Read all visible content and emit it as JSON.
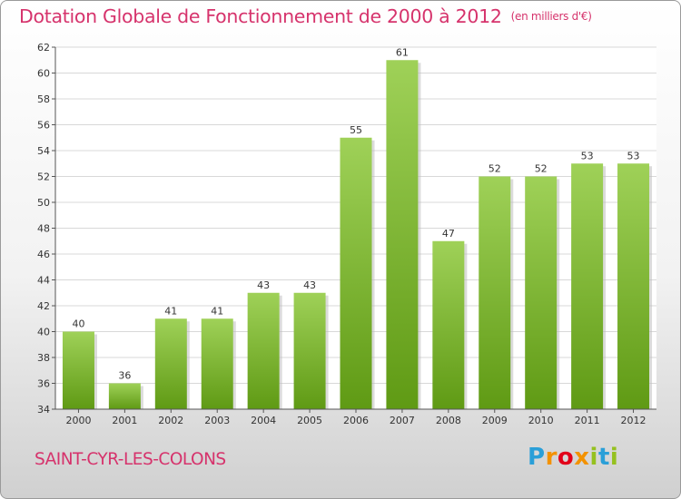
{
  "header": {
    "title": "Dotation Globale de Fonctionnement de 2000 à 2012",
    "unit": "(en milliers d'€)"
  },
  "footer": {
    "commune": "SAINT-CYR-LES-COLONS",
    "logo": {
      "letters": [
        "P",
        "r",
        "o",
        "x",
        "i",
        "t",
        "i"
      ],
      "colors": [
        "#2a9fd8",
        "#f39200",
        "#e2001a",
        "#f39200",
        "#95c11f",
        "#2a9fd8",
        "#95c11f"
      ]
    }
  },
  "chart_data": {
    "type": "bar",
    "categories": [
      "2000",
      "2001",
      "2002",
      "2003",
      "2004",
      "2005",
      "2006",
      "2007",
      "2008",
      "2009",
      "2010",
      "2011",
      "2012"
    ],
    "values": [
      40,
      36,
      41,
      41,
      43,
      43,
      55,
      61,
      47,
      52,
      52,
      53,
      53
    ],
    "data_labels": [
      "40",
      "36",
      "41",
      "41",
      "43",
      "43",
      "55",
      "61",
      "47",
      "52",
      "52",
      "53",
      "53"
    ],
    "ylim": [
      34,
      62
    ],
    "yticks": [
      34,
      36,
      38,
      40,
      42,
      44,
      46,
      48,
      50,
      52,
      54,
      56,
      58,
      60,
      62
    ],
    "grid": true,
    "bar_color_top": "#9fd158",
    "bar_color_bottom": "#5f9a14",
    "plot_background": "#ffffff"
  }
}
